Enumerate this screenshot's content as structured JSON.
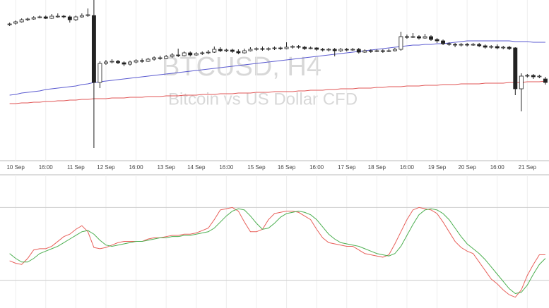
{
  "chart_data": [
    {
      "type": "candlestick",
      "title": "BTCUSD, H4",
      "subtitle": "Bitcoin vs US Dollar CFD",
      "x": [
        0,
        1,
        2,
        3,
        4,
        5,
        6,
        7,
        8,
        9,
        10,
        11,
        12,
        13,
        14,
        15,
        16,
        17,
        18,
        19,
        20,
        21,
        22,
        23,
        24,
        25,
        26,
        27,
        28,
        29,
        30,
        31,
        32,
        33,
        34,
        35,
        36,
        37,
        38,
        39,
        40,
        41,
        42,
        43,
        44,
        45,
        46,
        47,
        48,
        49,
        50,
        51,
        52,
        53,
        54,
        55,
        56,
        57,
        58,
        59,
        60,
        61,
        62,
        63,
        64,
        65,
        66,
        67,
        68,
        69,
        70,
        71,
        72,
        73,
        74,
        75,
        76,
        77,
        78,
        79,
        80,
        81,
        82,
        83,
        84,
        85,
        86,
        87,
        88,
        89
      ],
      "xlim": [
        -1.6,
        89.6
      ],
      "ylim": [
        0,
        230
      ],
      "xticks": [
        {
          "value": 1,
          "label": "10 Sep"
        },
        {
          "value": 6,
          "label": "16:00"
        },
        {
          "value": 11,
          "label": "11 Sep"
        },
        {
          "value": 16,
          "label": "12 Sep"
        },
        {
          "value": 21,
          "label": "16:00"
        },
        {
          "value": 26,
          "label": "13 Sep"
        },
        {
          "value": 31,
          "label": "14 Sep"
        },
        {
          "value": 36,
          "label": "16:00"
        },
        {
          "value": 41,
          "label": "15 Sep"
        },
        {
          "value": 46,
          "label": "16 Sep"
        },
        {
          "value": 51,
          "label": "16:00"
        },
        {
          "value": 56,
          "label": "17 Sep"
        },
        {
          "value": 61,
          "label": "18 Sep"
        },
        {
          "value": 66,
          "label": "16:00"
        },
        {
          "value": 71,
          "label": "19 Sep"
        },
        {
          "value": 76,
          "label": "20 Sep"
        },
        {
          "value": 81,
          "label": "16:00"
        },
        {
          "value": 86,
          "label": "21 Sep"
        }
      ],
      "open": [
        195,
        197,
        199,
        202,
        203,
        205,
        206,
        204,
        207,
        207,
        206,
        202,
        206,
        208,
        208,
        113,
        140,
        142,
        143,
        141,
        139,
        142,
        144,
        143,
        146,
        148,
        147,
        150,
        152,
        151,
        155,
        152,
        154,
        155,
        156,
        160,
        158,
        159,
        157,
        155,
        158,
        160,
        161,
        160,
        161,
        162,
        161,
        163,
        164,
        163,
        161,
        162,
        160,
        159,
        160,
        158,
        160,
        159,
        160,
        156,
        158,
        157,
        158,
        157,
        158,
        160,
        178,
        177,
        178,
        176,
        178,
        174,
        172,
        168,
        167,
        166,
        167,
        166,
        167,
        165,
        163,
        164,
        162,
        163,
        162,
        104,
        122,
        123,
        121,
        118
      ],
      "high": [
        198,
        201,
        204,
        205,
        207,
        208,
        208,
        210,
        211,
        209,
        208,
        208,
        211,
        218,
        230,
        143,
        145,
        146,
        145,
        143,
        144,
        146,
        147,
        148,
        150,
        151,
        152,
        155,
        161,
        157,
        157,
        156,
        157,
        159,
        164,
        163,
        161,
        161,
        160,
        161,
        163,
        163,
        164,
        163,
        164,
        164,
        170,
        166,
        166,
        165,
        164,
        163,
        162,
        162,
        162,
        162,
        162,
        162,
        162,
        160,
        160,
        160,
        160,
        161,
        162,
        185,
        181,
        183,
        180,
        182,
        180,
        176,
        174,
        170,
        169,
        169,
        169,
        169,
        169,
        167,
        166,
        167,
        165,
        165,
        163,
        126,
        125,
        125,
        124,
        121
      ],
      "low": [
        193,
        195,
        198,
        200,
        202,
        204,
        203,
        203,
        205,
        204,
        198,
        200,
        205,
        206,
        20,
        105,
        138,
        140,
        139,
        136,
        137,
        140,
        141,
        142,
        144,
        145,
        146,
        148,
        149,
        150,
        150,
        151,
        152,
        153,
        155,
        156,
        156,
        155,
        153,
        154,
        157,
        158,
        158,
        158,
        159,
        159,
        160,
        161,
        161,
        159,
        160,
        158,
        157,
        157,
        150,
        156,
        157,
        158,
        154,
        155,
        155,
        156,
        155,
        156,
        157,
        158,
        175,
        176,
        174,
        175,
        172,
        169,
        166,
        165,
        163,
        164,
        164,
        165,
        163,
        161,
        161,
        160,
        160,
        159,
        95,
        72,
        120,
        118,
        119,
        110
      ],
      "close": [
        196,
        199,
        202,
        203,
        205,
        206,
        204,
        207,
        207,
        206,
        202,
        206,
        208,
        209,
        113,
        140,
        142,
        143,
        141,
        139,
        142,
        144,
        143,
        146,
        148,
        147,
        150,
        152,
        151,
        155,
        152,
        154,
        155,
        156,
        160,
        158,
        159,
        157,
        155,
        158,
        160,
        161,
        160,
        161,
        162,
        161,
        163,
        164,
        163,
        161,
        162,
        160,
        159,
        160,
        158,
        160,
        159,
        160,
        156,
        158,
        157,
        158,
        157,
        158,
        160,
        178,
        177,
        178,
        176,
        178,
        174,
        172,
        168,
        167,
        166,
        167,
        166,
        167,
        165,
        163,
        164,
        162,
        163,
        161,
        104,
        122,
        123,
        121,
        122,
        113
      ],
      "series": [
        {
          "color": "#5a5ad0",
          "values": [
            95,
            96,
            98,
            99,
            100,
            101,
            103,
            104,
            105,
            106,
            107,
            108,
            110,
            111,
            113,
            114,
            115,
            116,
            117,
            118,
            119,
            120,
            121,
            122,
            123,
            124,
            125,
            126,
            127,
            128,
            129,
            130,
            131,
            132,
            133,
            134,
            135,
            136,
            137,
            138,
            139,
            140,
            141,
            142,
            143,
            144,
            145,
            146,
            147,
            148,
            149,
            150,
            151,
            152,
            153,
            154,
            155,
            156,
            157,
            158,
            159,
            160,
            161,
            162,
            163,
            164,
            165,
            166,
            166,
            167,
            167,
            168,
            168,
            169,
            170,
            171,
            172,
            172,
            172,
            172,
            172,
            172,
            172,
            172,
            171,
            171,
            171,
            170,
            170,
            170
          ]
        },
        {
          "color": "#e05555",
          "values": [
            83,
            83,
            84,
            84,
            85,
            85,
            86,
            86,
            87,
            87,
            88,
            88,
            89,
            89,
            90,
            90,
            90,
            91,
            91,
            91,
            92,
            92,
            92,
            93,
            93,
            93,
            94,
            94,
            94,
            95,
            95,
            95,
            96,
            96,
            96,
            97,
            97,
            97,
            98,
            98,
            98,
            99,
            99,
            99,
            100,
            100,
            100,
            100,
            101,
            101,
            102,
            102,
            102,
            103,
            103,
            104,
            104,
            104,
            105,
            105,
            105,
            106,
            106,
            107,
            107,
            107,
            108,
            108,
            108,
            109,
            109,
            109,
            110,
            110,
            110,
            111,
            111,
            111,
            111,
            112,
            112,
            112,
            112,
            113,
            113,
            113,
            114,
            114,
            114,
            115
          ]
        }
      ]
    },
    {
      "type": "line",
      "x": [
        0,
        1,
        2,
        3,
        4,
        5,
        6,
        7,
        8,
        9,
        10,
        11,
        12,
        13,
        14,
        15,
        16,
        17,
        18,
        19,
        20,
        21,
        22,
        23,
        24,
        25,
        26,
        27,
        28,
        29,
        30,
        31,
        32,
        33,
        34,
        35,
        36,
        37,
        38,
        39,
        40,
        41,
        42,
        43,
        44,
        45,
        46,
        47,
        48,
        49,
        50,
        51,
        52,
        53,
        54,
        55,
        56,
        57,
        58,
        59,
        60,
        61,
        62,
        63,
        64,
        65,
        66,
        67,
        68,
        69,
        70,
        71,
        72,
        73,
        74,
        75,
        76,
        77,
        78,
        79,
        80,
        81,
        82,
        83,
        84,
        85,
        86,
        87,
        88,
        89
      ],
      "xlim": [
        -1.6,
        89.6
      ],
      "ylim": [
        0,
        100
      ],
      "levels": [
        20,
        80
      ],
      "series": [
        {
          "color": "#e8605a",
          "values": [
            36,
            34,
            33,
            38,
            45,
            46,
            46,
            48,
            52,
            56,
            58,
            62,
            65,
            60,
            47,
            46,
            47,
            49,
            51,
            52,
            52,
            52,
            52,
            54,
            55,
            55,
            56,
            57,
            57,
            58,
            58,
            59,
            61,
            63,
            70,
            78,
            79,
            80,
            77,
            68,
            60,
            60,
            62,
            70,
            75,
            76,
            77,
            77,
            76,
            73,
            70,
            62,
            55,
            51,
            50,
            49,
            48,
            48,
            45,
            42,
            41,
            40,
            39,
            41,
            50,
            60,
            70,
            78,
            80,
            79,
            78,
            75,
            68,
            60,
            52,
            47,
            44,
            42,
            35,
            28,
            21,
            17,
            12,
            8,
            6,
            12,
            24,
            33,
            41,
            41
          ]
        },
        {
          "color": "#4caf50",
          "values": [
            42,
            38,
            35,
            35,
            38,
            42,
            44,
            46,
            48,
            51,
            54,
            57,
            60,
            61,
            58,
            53,
            49,
            48,
            49,
            50,
            51,
            52,
            52,
            53,
            54,
            55,
            55,
            56,
            56,
            57,
            57,
            58,
            59,
            60,
            63,
            68,
            73,
            77,
            79,
            78,
            73,
            67,
            62,
            63,
            67,
            72,
            75,
            76,
            77,
            76,
            74,
            70,
            64,
            58,
            54,
            51,
            50,
            49,
            48,
            46,
            44,
            42,
            41,
            40,
            42,
            48,
            57,
            66,
            74,
            78,
            79,
            78,
            75,
            70,
            63,
            56,
            50,
            46,
            42,
            37,
            31,
            25,
            19,
            13,
            9,
            10,
            16,
            25,
            33,
            38
          ]
        }
      ]
    }
  ]
}
